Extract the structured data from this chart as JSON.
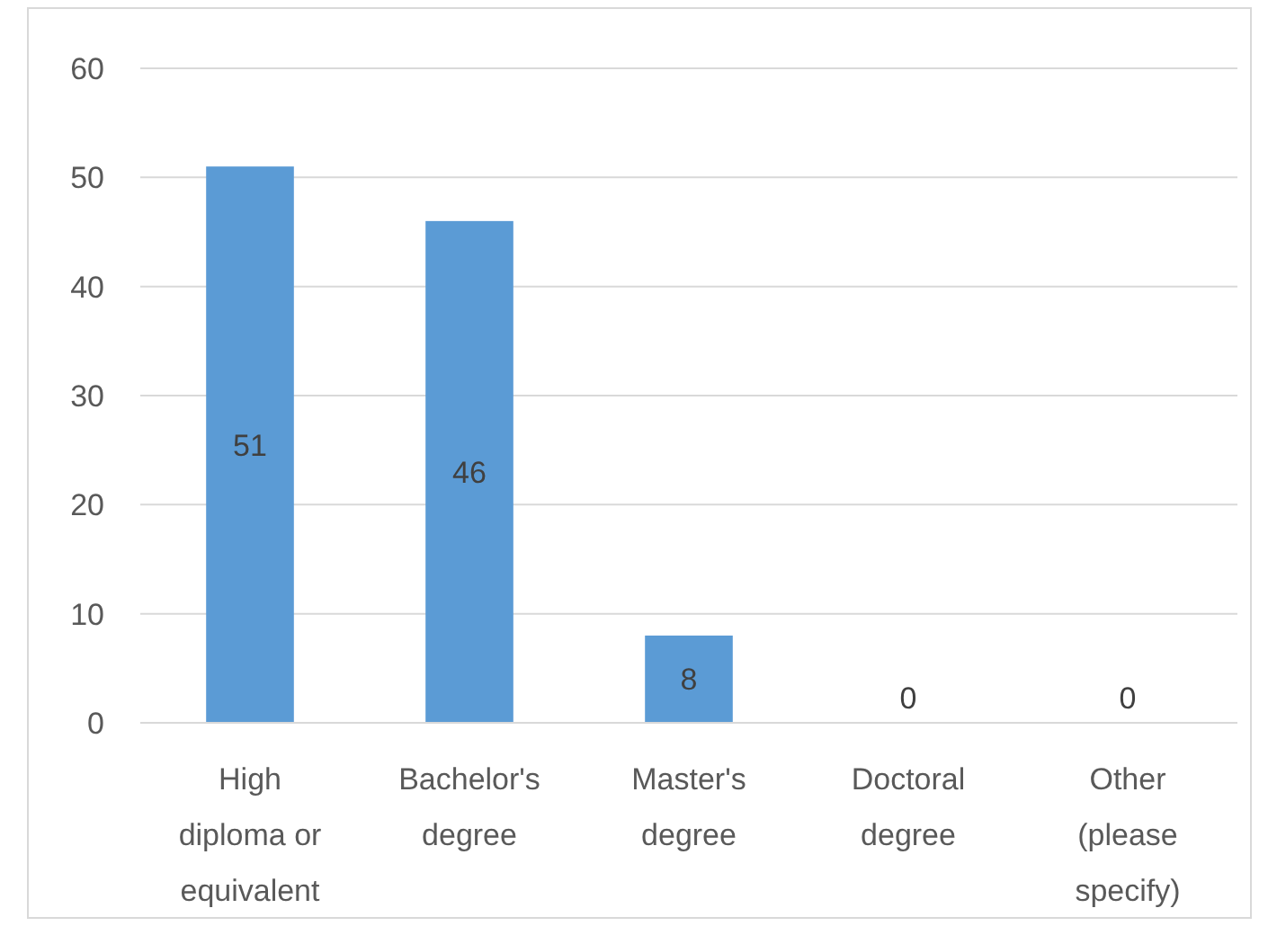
{
  "chart_data": {
    "type": "bar",
    "categories": [
      "High diploma or equivalent",
      "Bachelor's degree",
      "Master's degree",
      "Doctoral degree",
      "Other (please specify)"
    ],
    "values": [
      51,
      46,
      8,
      0,
      0
    ],
    "color": "#5b9bd5",
    "ylim": [
      0,
      60
    ],
    "yticks": [
      0,
      10,
      20,
      30,
      40,
      50,
      60
    ],
    "grid": "y",
    "data_labels": true
  }
}
